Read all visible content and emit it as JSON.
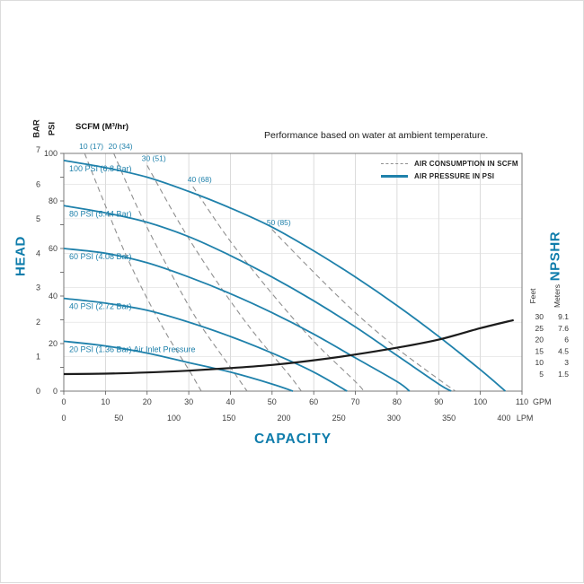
{
  "frame": {
    "note": "Performance based on water at ambient temperature."
  },
  "labels": {
    "head": "HEAD",
    "capacity": "CAPACITY",
    "npshr": "NPSHR",
    "bar": "BAR",
    "psi": "PSI",
    "scfm_header": "SCFM (M³/hr)",
    "feet": "Feet",
    "meters": "Meters",
    "gpm_unit": "GPM",
    "lpm_unit": "LPM"
  },
  "legend": {
    "air_consumption": "AIR CONSUMPTION IN SCFM",
    "air_pressure": "AIR PRESSURE IN PSI"
  },
  "colors": {
    "accent_blue": "#0e7cab",
    "curve_blue": "#1f81ab",
    "consumption_gray": "#8f8f8f",
    "npshr_black": "#1c1c1c",
    "grid": "#cccccc",
    "grid_light": "#dedede",
    "axis_text": "#3c3c3c",
    "plot_border": "#7a7a7a"
  },
  "chart_data": {
    "type": "line",
    "title": "Performance based on water at ambient temperature.",
    "x_axis": {
      "unit": "GPM",
      "min": 0,
      "max": 110,
      "ticks": [
        0,
        10,
        20,
        30,
        40,
        50,
        60,
        70,
        80,
        90,
        100,
        110
      ]
    },
    "x_axis_secondary": {
      "unit": "LPM",
      "ticks": [
        0,
        50,
        100,
        150,
        200,
        250,
        300,
        350,
        400
      ],
      "gpm_per_lpm": 0.26417
    },
    "y_axis": {
      "unit": "PSI",
      "min": 0,
      "max": 100,
      "major_ticks": [
        0,
        20,
        40,
        60,
        80,
        100
      ],
      "minor_step": 10
    },
    "y_axis_secondary": {
      "unit": "BAR",
      "ticks": [
        0,
        1,
        2,
        3,
        4,
        5,
        6,
        7
      ],
      "psi_per_bar": 14.5
    },
    "npshr_axis": {
      "feet_ticks": [
        30,
        25,
        20,
        15,
        10,
        5
      ],
      "meter_ticks": [
        "9.1",
        "7.6",
        "6",
        "4.5",
        "3",
        "1.5"
      ]
    },
    "pressure_curves": [
      {
        "label": "100 PSI (6.8 Bar)",
        "points": [
          [
            0,
            97
          ],
          [
            10,
            94
          ],
          [
            20,
            90
          ],
          [
            30,
            84
          ],
          [
            40,
            77
          ],
          [
            50,
            69
          ],
          [
            60,
            59
          ],
          [
            70,
            48
          ],
          [
            80,
            36
          ],
          [
            90,
            23
          ],
          [
            100,
            9
          ],
          [
            106,
            0
          ]
        ]
      },
      {
        "label": "80 PSI (5.44 Bar)",
        "points": [
          [
            0,
            78
          ],
          [
            10,
            75
          ],
          [
            20,
            71
          ],
          [
            30,
            65
          ],
          [
            40,
            57
          ],
          [
            50,
            48
          ],
          [
            60,
            38
          ],
          [
            70,
            27
          ],
          [
            80,
            15
          ],
          [
            90,
            3
          ],
          [
            93,
            0
          ]
        ]
      },
      {
        "label": "60 PSI (4.08 Bar)",
        "points": [
          [
            0,
            60
          ],
          [
            10,
            58
          ],
          [
            20,
            54
          ],
          [
            30,
            48
          ],
          [
            40,
            41
          ],
          [
            50,
            33
          ],
          [
            60,
            24
          ],
          [
            70,
            14
          ],
          [
            80,
            4
          ],
          [
            83,
            0
          ]
        ]
      },
      {
        "label": "40 PSI (2.72 Bar)",
        "points": [
          [
            0,
            39
          ],
          [
            10,
            37
          ],
          [
            20,
            34
          ],
          [
            30,
            29
          ],
          [
            40,
            23
          ],
          [
            50,
            16
          ],
          [
            60,
            8
          ],
          [
            68,
            0
          ]
        ]
      },
      {
        "label": "20 PSI (1.36 Bar) Air Inlet Pressure",
        "points": [
          [
            0,
            21
          ],
          [
            10,
            19
          ],
          [
            20,
            16
          ],
          [
            30,
            12
          ],
          [
            40,
            8
          ],
          [
            50,
            3
          ],
          [
            55,
            0
          ]
        ]
      }
    ],
    "consumption_curves": [
      {
        "label": "10 (17)",
        "points": [
          [
            5,
            100
          ],
          [
            10,
            78
          ],
          [
            15,
            57
          ],
          [
            20,
            39
          ],
          [
            25,
            23
          ],
          [
            30,
            9
          ],
          [
            33,
            0
          ]
        ]
      },
      {
        "label": "20 (34)",
        "points": [
          [
            12,
            100
          ],
          [
            18,
            76
          ],
          [
            25,
            52
          ],
          [
            32,
            30
          ],
          [
            40,
            10
          ],
          [
            44,
            0
          ]
        ]
      },
      {
        "label": "30 (51)",
        "points": [
          [
            20,
            95
          ],
          [
            28,
            70
          ],
          [
            36,
            48
          ],
          [
            45,
            26
          ],
          [
            54,
            7
          ],
          [
            57,
            0
          ]
        ]
      },
      {
        "label": "40 (68)",
        "points": [
          [
            31,
            86
          ],
          [
            40,
            63
          ],
          [
            50,
            41
          ],
          [
            60,
            21
          ],
          [
            70,
            4
          ],
          [
            72,
            0
          ]
        ]
      },
      {
        "label": "50 (85)",
        "points": [
          [
            50,
            68
          ],
          [
            60,
            50
          ],
          [
            70,
            33
          ],
          [
            80,
            18
          ],
          [
            90,
            5
          ],
          [
            94,
            0
          ]
        ]
      }
    ],
    "npshr_curve": {
      "name": "NPSHR",
      "x_gpm": [
        0,
        10,
        20,
        30,
        40,
        50,
        60,
        70,
        80,
        90,
        100,
        108
      ],
      "feet": [
        5,
        5.2,
        5.7,
        6.5,
        7.6,
        9,
        11,
        13.5,
        16.5,
        20,
        25,
        28.5
      ]
    }
  }
}
